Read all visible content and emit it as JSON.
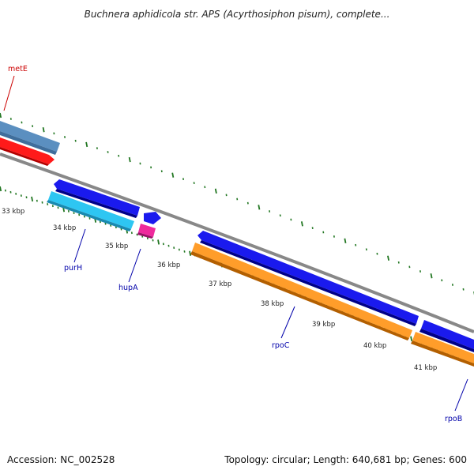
{
  "title": "Buchnera aphidicola str. APS (Acyrthosiphon pisum), complete...",
  "accession": "Accession: NC_002528",
  "topology": "Topology: circular; Length: 640,681 bp; Genes: 600",
  "kbp_ticks": [
    "33 kbp",
    "34 kbp",
    "35 kbp",
    "36 kbp",
    "37 kbp",
    "38 kbp",
    "39 kbp",
    "40 kbp",
    "41 kbp"
  ],
  "genes": [
    {
      "name": "metE",
      "color": "#cc0000"
    },
    {
      "name": "purH",
      "color": "#0000aa"
    },
    {
      "name": "hupA",
      "color": "#0000aa"
    },
    {
      "name": "rpoC",
      "color": "#0000aa"
    },
    {
      "name": "rpoB",
      "color": "#0000aa"
    }
  ],
  "colors": {
    "backbone": "#888888",
    "tick": "#227722",
    "forward_blue": "#1111ee",
    "cyan": "#22bbee",
    "steel": "#5588bb",
    "red": "#ee1111",
    "magenta": "#ee2299",
    "orange": "#ff9922"
  }
}
